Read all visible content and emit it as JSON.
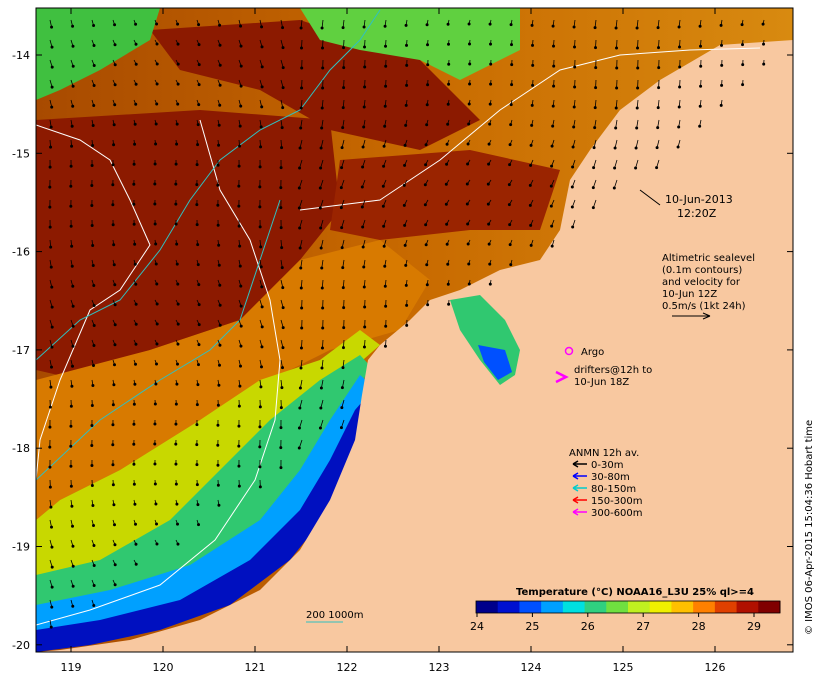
{
  "map": {
    "lon_ticks": [
      "119",
      "120",
      "121",
      "122",
      "123",
      "124",
      "125",
      "126"
    ],
    "lat_ticks": [
      "-14",
      "-15",
      "-16",
      "-17",
      "-18",
      "-19",
      "-20"
    ]
  },
  "date_label": {
    "line1": "10-Jun-2013",
    "line2": "12:20Z"
  },
  "altimetry_note": {
    "lines": [
      "Altimetric sealevel",
      "(0.1m contours)",
      "and velocity for",
      "10-Jun 12Z",
      "0.5m/s (1kt 24h)"
    ]
  },
  "argo_label": "Argo",
  "drifters_label": {
    "line1": "drifters@12h to",
    "line2": "10-Jun 18Z"
  },
  "anmn_legend": {
    "title": "ANMN 12h av.",
    "items": [
      {
        "label": "0-30m",
        "color": "#000000"
      },
      {
        "label": "30-80m",
        "color": "#0000ff"
      },
      {
        "label": "80-150m",
        "color": "#00cccc"
      },
      {
        "label": "150-300m",
        "color": "#ff0000"
      },
      {
        "label": "300-600m",
        "color": "#ff00ff"
      }
    ]
  },
  "isobath_label": "200  1000m",
  "colorbar": {
    "title": "Temperature (°C) NOAA16_L3U 25% ql>=4",
    "ticks": [
      "24",
      "25",
      "26",
      "27",
      "28",
      "29"
    ],
    "colors": [
      "#00008b",
      "#0010d0",
      "#0050ff",
      "#00a0ff",
      "#00e0e0",
      "#30d080",
      "#70e040",
      "#c0f020",
      "#f0f000",
      "#ffc000",
      "#ff8000",
      "#e04000",
      "#b01000",
      "#800000"
    ]
  },
  "credit": "© IMOS 06-Apr-2015 15:04:36 Hobart time"
}
